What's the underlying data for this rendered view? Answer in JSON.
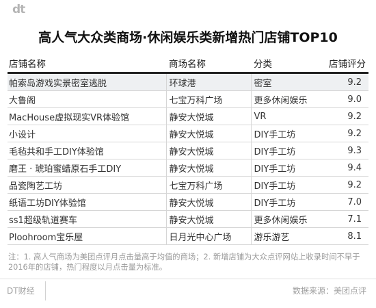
{
  "brand": {
    "logo_text": "dt"
  },
  "title": "高人气大众类商场·休闲娱乐类新增热门店铺TOP10",
  "table": {
    "headers": [
      "店铺名称",
      "商场名称",
      "分类",
      "店铺评分"
    ],
    "rows": [
      [
        "帕索岛游戏实景密室逃脱",
        "环球港",
        "密室",
        "9.2"
      ],
      [
        "大鲁阁",
        "七宝万科广场",
        "更多休闲娱乐",
        "9.0"
      ],
      [
        "MacHouse虚拟现实VR体验馆",
        "静安大悦城",
        "VR",
        "9.2"
      ],
      [
        "小设计",
        "静安大悦城",
        "DIY手工坊",
        "9.2"
      ],
      [
        "毛毡共和手工DIY体验馆",
        "静安大悦城",
        "DIY手工坊",
        "9.3"
      ],
      [
        "磨王 · 琥珀蜜蜡原石手工DIY",
        "静安大悦城",
        "DIY手工坊",
        "9.4"
      ],
      [
        "品瓷陶艺工坊",
        "七宝万科广场",
        "DIY手工坊",
        "9.2"
      ],
      [
        "纸语工坊DIY体验馆",
        "静安大悦城",
        "DIY手工坊",
        "7.0"
      ],
      [
        "ss1超级轨道赛车",
        "静安大悦城",
        "更多休闲娱乐",
        "7.1"
      ],
      [
        "Ploohroom宝乐屋",
        "日月光中心广场",
        "游乐游艺",
        "8.1"
      ]
    ]
  },
  "note": "注：1. 高人气商场为美团点评月点击量高于均值的商场；2. 新增店铺为大众点评网站上收录时间不早于2016年的店铺，热门程度以月点击量为标准。",
  "footer": {
    "left": "DT财经",
    "right": "数据来源：美团点评"
  }
}
